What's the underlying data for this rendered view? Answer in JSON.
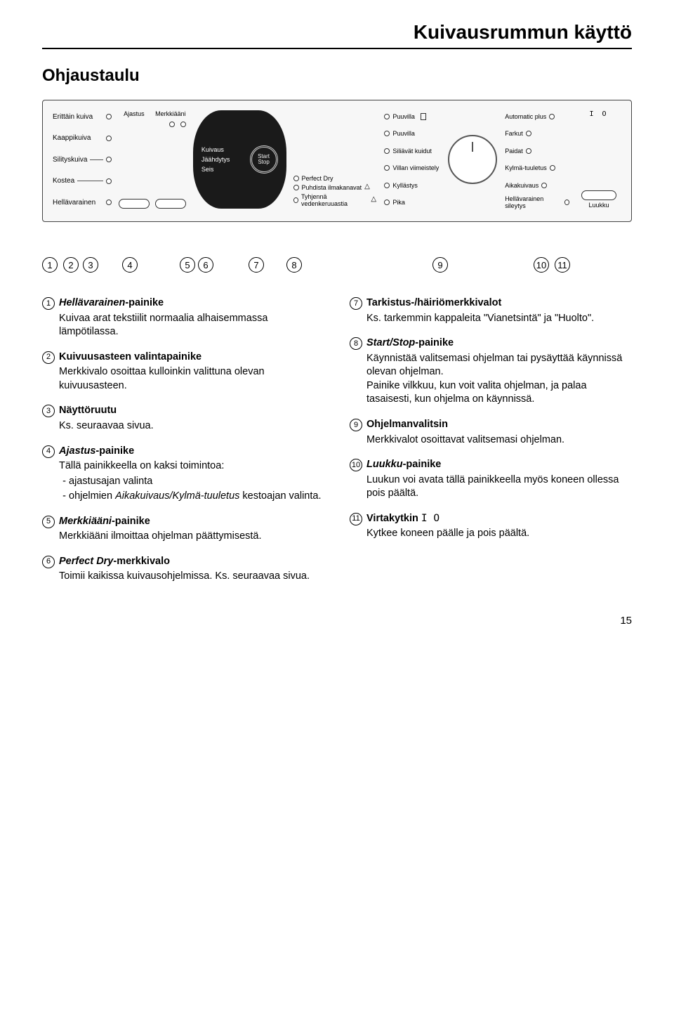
{
  "page": {
    "title": "Kuivausrummun käyttö",
    "subtitle": "Ohjaustaulu",
    "pagenum": "15"
  },
  "panel": {
    "dryLevels": [
      "Erittäin kuiva",
      "Kaappikuiva",
      "Silityskuiva",
      "Kostea",
      "Hellävarainen"
    ],
    "btnLabels": {
      "ajastus": "Ajastus",
      "merkkiaani": "Merkkiääni"
    },
    "blackBox": {
      "l1": "Kuivaus",
      "l2": "Jäähdytys",
      "l3": "Seis",
      "start": "Start",
      "stop": "Stop"
    },
    "checks": {
      "perfect": "Perfect Dry",
      "ilma": "Puhdista ilmakanavat",
      "vesi": "Tyhjennä vedenkeruuastia"
    },
    "progsLeft": [
      "Puuvilla",
      "Puuvilla",
      "Siliävät kuidut",
      "Villan viimeistely",
      "Kyllästys",
      "Pika"
    ],
    "progsRight": [
      "Automatic plus",
      "Farkut",
      "Paidat",
      "Kylmä-tuuletus",
      "Aikakuivaus",
      "Hellävarainen sileytys"
    ],
    "luukku": "Luukku"
  },
  "numbers": [
    "1",
    "2",
    "3",
    "4",
    "5",
    "6",
    "7",
    "8",
    "9",
    "10",
    "11"
  ],
  "numPositions": [
    0,
    30,
    58,
    114,
    196,
    222,
    294,
    348,
    556,
    700,
    730
  ],
  "left": {
    "i1": {
      "n": "1",
      "head_bi": "Hellävarainen",
      "head_b": "-painike",
      "body": "Kuivaa arat tekstiilit normaalia alhaisemmassa lämpötilassa."
    },
    "i2": {
      "n": "2",
      "head_b": "Kuivuusasteen valintapainike",
      "body": "Merkkivalo osoittaa kulloinkin valittuna olevan kuivuusasteen."
    },
    "i3": {
      "n": "3",
      "head_b": "Näyttöruutu",
      "body": "Ks. seuraavaa sivua."
    },
    "i4": {
      "n": "4",
      "head_bi": "Ajastus",
      "head_b": "-painike",
      "body": "Tällä painikkeella on kaksi toimintoa:",
      "li1": "ajastusajan valinta",
      "li2_a": "ohjelmien ",
      "li2_bi": "Aikakuivaus/Kylmä-tuuletus",
      "li2_b": " kestoajan valinta."
    },
    "i5": {
      "n": "5",
      "head_bi": "Merkkiääni",
      "head_b": "-painike",
      "body": "Merkkiääni ilmoittaa ohjelman päättymisestä."
    },
    "i6": {
      "n": "6",
      "head_bi": "Perfect Dry",
      "head_b": "-merkkivalo",
      "body": "Toimii kaikissa kuivausohjelmissa. Ks. seuraavaa sivua."
    }
  },
  "right": {
    "i7": {
      "n": "7",
      "head_b": "Tarkistus-/häiriömerkkivalot",
      "body": "Ks. tarkemmin kappaleita \"Vianetsintä\" ja \"Huolto\"."
    },
    "i8": {
      "n": "8",
      "head_bi": "Start/Stop",
      "head_b": "-painike",
      "body": "Käynnistää valitsemasi ohjelman tai pysäyttää käynnissä olevan ohjelman.\nPainike vilkkuu, kun voit valita ohjelman, ja palaa tasaisesti, kun ohjelma on käynnissä."
    },
    "i9": {
      "n": "9",
      "head_b": "Ohjelmanvalitsin",
      "body": "Merkkivalot osoittavat valitsemasi ohjelman."
    },
    "i10": {
      "n": "10",
      "head_bi": "Luukku",
      "head_b": "-painike",
      "body": "Luukun voi avata tällä painikkeella myös koneen ollessa pois päältä."
    },
    "i11": {
      "n": "11",
      "head_b": "Virtakytkin ",
      "sym": "I O",
      "body": "Kytkee koneen päälle ja pois päältä."
    }
  }
}
